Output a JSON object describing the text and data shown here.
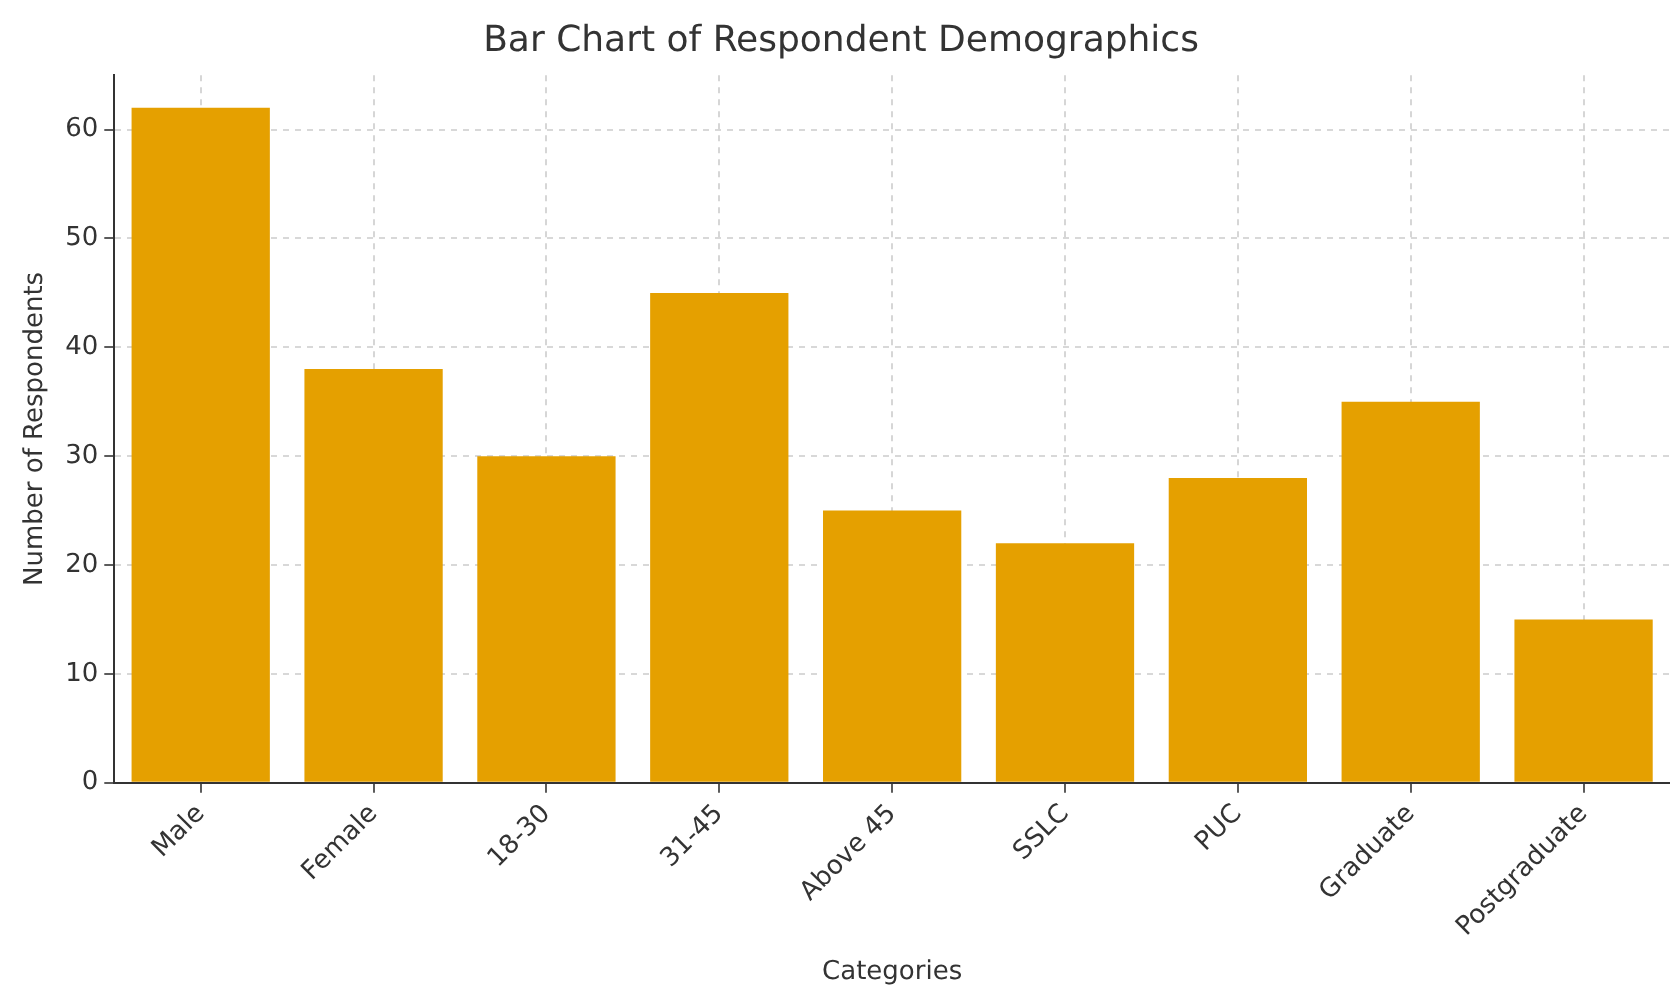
{
  "chart_data": {
    "type": "bar",
    "title": "Bar Chart of Respondent Demographics",
    "xlabel": "Categories",
    "ylabel": "Number of Respondents",
    "categories": [
      "Male",
      "Female",
      "18-30",
      "31-45",
      "Above 45",
      "SSLC",
      "PUC",
      "Graduate",
      "Postgraduate"
    ],
    "values": [
      62,
      38,
      30,
      45,
      25,
      22,
      28,
      35,
      15
    ],
    "color": "#e5a000",
    "ylim": [
      0,
      65
    ],
    "yticks": [
      0,
      10,
      20,
      30,
      40,
      50,
      60
    ],
    "grid": true
  }
}
